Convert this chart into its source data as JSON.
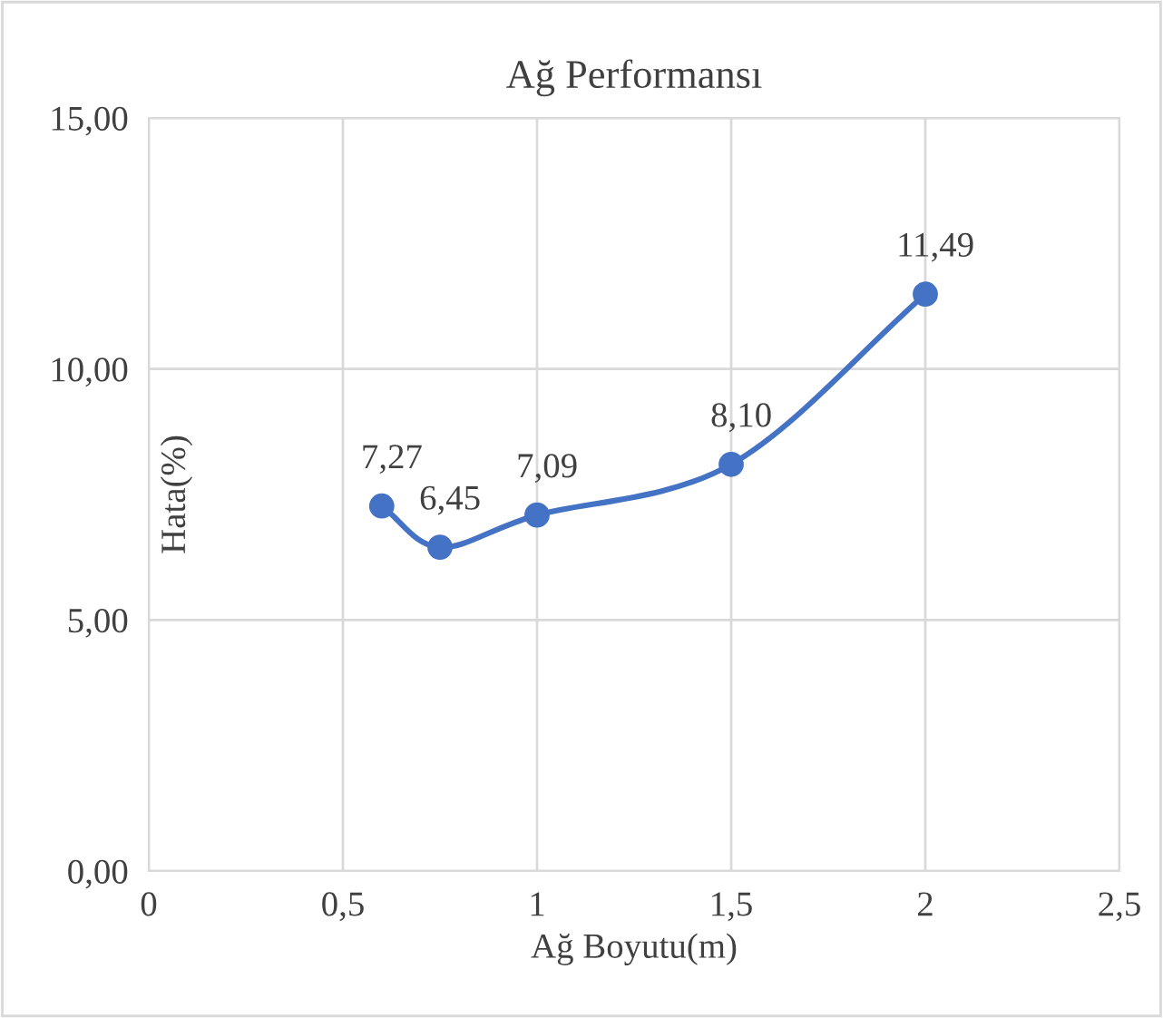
{
  "chart_data": {
    "type": "line",
    "title": "Ağ Performansı",
    "xlabel": "Ağ Boyutu(m)",
    "ylabel": "Hata(%)",
    "x": [
      0.6,
      0.75,
      1,
      1.5,
      2
    ],
    "series": [
      {
        "color": "#4472c4",
        "values": [
          7.27,
          6.45,
          7.09,
          8.1,
          11.49
        ],
        "value_labels": [
          "7,27",
          "6,45",
          "7,09",
          "8,10",
          "11,49"
        ]
      }
    ],
    "xlim": [
      0,
      2.5
    ],
    "ylim": [
      0,
      15
    ],
    "xticks": [
      0,
      {
        "value": 0.5,
        "label": "0,5"
      },
      1,
      {
        "value": 1.5,
        "label": "1,5"
      },
      2,
      {
        "value": 2.5,
        "label": "2,5"
      }
    ],
    "yticks": [
      {
        "value": 0,
        "label": "0,00"
      },
      {
        "value": 5,
        "label": "5,00"
      },
      {
        "value": 10,
        "label": "10,00"
      },
      {
        "value": 15,
        "label": "15,00"
      }
    ],
    "grid": true,
    "marker": "circle",
    "line_style": "solid"
  }
}
